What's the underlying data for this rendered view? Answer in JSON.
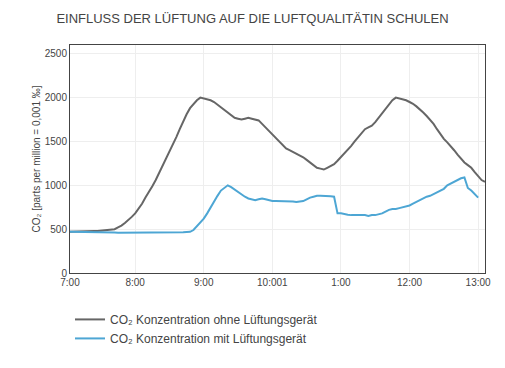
{
  "chart_data": {
    "type": "line",
    "title": "EINFLUSS DER LÜFTUNG AUF DIE LUFTQUALITÄTIN SCHULEN",
    "ylabel": "CO₂ [parts per million = 0,001 ‰]",
    "categories": [
      "7:00",
      null,
      null,
      null,
      null,
      null,
      null,
      null,
      null,
      null,
      null,
      null,
      null,
      null,
      null,
      null,
      null,
      null,
      null,
      "8:00",
      null,
      null,
      null,
      null,
      null,
      null,
      null,
      null,
      null,
      null,
      null,
      null,
      null,
      null,
      null,
      null,
      null,
      null,
      null,
      "9:00",
      null,
      null,
      null,
      null,
      null,
      null,
      null,
      null,
      null,
      null,
      null,
      null,
      null,
      null,
      null,
      null,
      null,
      null,
      null,
      "10:001",
      null,
      null,
      null,
      null,
      null,
      null,
      null,
      null,
      null,
      null,
      null,
      null,
      null,
      null,
      null,
      null,
      null,
      null,
      null,
      "1:00",
      null,
      null,
      null,
      null,
      null,
      null,
      null,
      null,
      null,
      null,
      null,
      null,
      null,
      null,
      null,
      null,
      null,
      null,
      null,
      "12:00",
      null,
      null,
      null,
      null,
      null,
      null,
      null,
      null,
      null,
      null,
      null,
      null,
      null,
      null,
      null,
      null,
      null,
      null,
      null,
      "13:00",
      null,
      null
    ],
    "series": [
      {
        "name": "CO₂ Konzentration ohne Lüftungsgerät",
        "color": "#666666",
        "values": [
          470,
          470,
          470,
          470,
          470,
          472,
          475,
          478,
          480,
          483,
          485,
          488,
          490,
          500,
          520,
          540,
          570,
          600,
          640,
          680,
          730,
          790,
          860,
          920,
          990,
          1060,
          1140,
          1220,
          1300,
          1380,
          1460,
          1550,
          1640,
          1730,
          1810,
          1880,
          1930,
          1970,
          2000,
          1990,
          1980,
          1970,
          1950,
          1920,
          1880,
          1850,
          1820,
          1790,
          1770,
          1760,
          1750,
          1760,
          1770,
          1760,
          1750,
          1740,
          1700,
          1660,
          1620,
          1580,
          1540,
          1500,
          1460,
          1420,
          1400,
          1380,
          1360,
          1340,
          1320,
          1290,
          1260,
          1230,
          1200,
          1190,
          1180,
          1200,
          1220,
          1240,
          1280,
          1320,
          1360,
          1400,
          1450,
          1500,
          1550,
          1600,
          1640,
          1660,
          1680,
          1720,
          1770,
          1820,
          1870,
          1920,
          1970,
          2000,
          1990,
          1980,
          1970,
          1950,
          1930,
          1900,
          1870,
          1830,
          1790,
          1750,
          1700,
          1640,
          1580,
          1530,
          1490,
          1450,
          1400,
          1350,
          1300,
          1260,
          1230,
          1200,
          1150,
          1100,
          1060,
          1040
        ]
      },
      {
        "name": "CO₂ Konzentration mit Lüftungsgerät",
        "color": "#4da6d4",
        "values": [
          470,
          470,
          470,
          468,
          468,
          468,
          465,
          465,
          465,
          465,
          465,
          465,
          462,
          462,
          460,
          460,
          460,
          460,
          460,
          460,
          460,
          458,
          458,
          458,
          458,
          458,
          460,
          460,
          462,
          462,
          462,
          462,
          462,
          465,
          468,
          470,
          490,
          530,
          570,
          620,
          680,
          750,
          820,
          880,
          940,
          970,
          1000,
          980,
          950,
          920,
          890,
          870,
          850,
          840,
          830,
          840,
          850,
          840,
          830,
          820,
          820,
          820,
          820,
          820,
          820,
          815,
          810,
          815,
          820,
          840,
          860,
          870,
          880,
          880,
          880,
          875,
          875,
          870,
          680,
          680,
          670,
          665,
          660,
          660,
          660,
          655,
          660,
          650,
          660,
          660,
          670,
          680,
          700,
          720,
          730,
          730,
          740,
          750,
          760,
          770,
          790,
          810,
          830,
          850,
          870,
          880,
          900,
          920,
          940,
          960,
          1000,
          1020,
          1040,
          1060,
          1080,
          1090,
          970,
          940,
          900,
          860,
          null,
          null
        ]
      }
    ],
    "ylim": [
      0,
      2600
    ],
    "yticks": [
      0,
      500,
      1000,
      1500,
      2000,
      2500
    ],
    "grid": true,
    "legend": "bottom"
  }
}
